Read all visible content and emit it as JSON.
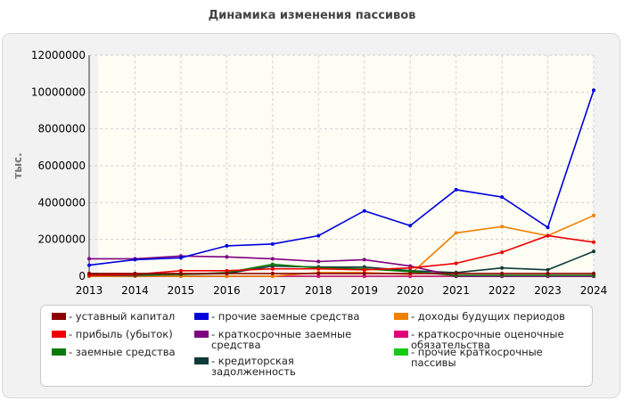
{
  "chart_data": {
    "type": "line",
    "title": "Динамика изменения пассивов",
    "ylabel": "тыс.",
    "xlabel": "",
    "ylim": [
      0,
      12000000
    ],
    "yticks": [
      "0",
      "2000000",
      "4000000",
      "6000000",
      "8000000",
      "10000000",
      "12000000"
    ],
    "x": [
      "2013",
      "2014",
      "2015",
      "2016",
      "2017",
      "2018",
      "2019",
      "2020",
      "2021",
      "2022",
      "2023",
      "2024"
    ],
    "grid": true,
    "legend_position": "bottom",
    "series": [
      {
        "name": "уставный капитал",
        "color": "#8b0000",
        "values": [
          150000,
          150000,
          150000,
          150000,
          150000,
          150000,
          150000,
          150000,
          150000,
          150000,
          150000,
          150000
        ]
      },
      {
        "name": "прибыль (убыток)",
        "color": "#ee0000",
        "values": [
          50000,
          100000,
          300000,
          300000,
          400000,
          400000,
          350000,
          450000,
          700000,
          1300000,
          2200000,
          1850000
        ]
      },
      {
        "name": "заемные средства",
        "color": "#0a7a0a",
        "values": [
          100000,
          100000,
          100000,
          200000,
          650000,
          450000,
          400000,
          250000,
          50000,
          50000,
          50000,
          50000
        ]
      },
      {
        "name": "прочие заемные средства",
        "color": "#0000dd",
        "values": [
          600000,
          900000,
          1000000,
          1650000,
          1750000,
          2200000,
          3550000,
          2750000,
          4700000,
          4300000,
          2650000,
          10100000
        ]
      },
      {
        "name": "краткосрочные заемные средства",
        "color": "#800080",
        "values": [
          950000,
          950000,
          1100000,
          1050000,
          950000,
          800000,
          900000,
          550000,
          0,
          0,
          0,
          0
        ]
      },
      {
        "name": "кредиторская задолженность",
        "color": "#0d3b3b",
        "values": [
          50000,
          50000,
          100000,
          150000,
          550000,
          500000,
          500000,
          300000,
          200000,
          450000,
          350000,
          1350000
        ]
      },
      {
        "name": "доходы будущих периодов",
        "color": "#f08000",
        "values": [
          0,
          0,
          0,
          0,
          0,
          200000,
          200000,
          100000,
          2350000,
          2700000,
          2200000,
          3300000
        ]
      },
      {
        "name": "краткосрочные оценочные обязательства",
        "color": "#e0007a",
        "values": [
          0,
          0,
          0,
          0,
          0,
          0,
          0,
          0,
          0,
          0,
          0,
          0
        ]
      },
      {
        "name": "прочие краткосрочные пассивы",
        "color": "#11cc11",
        "values": [
          0,
          0,
          0,
          0,
          0,
          0,
          0,
          0,
          0,
          0,
          0,
          0
        ]
      }
    ]
  }
}
